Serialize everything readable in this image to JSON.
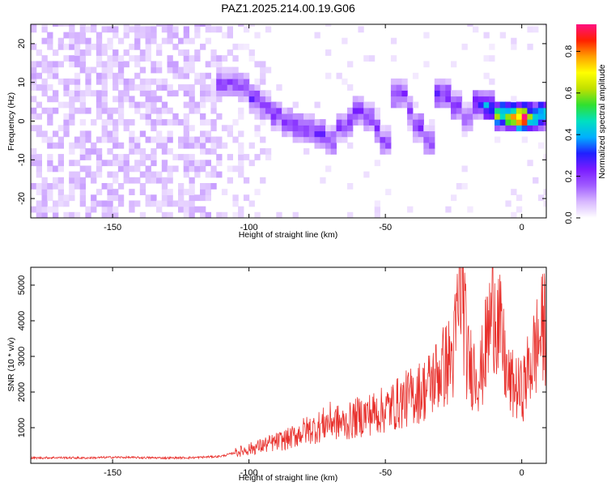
{
  "title": "PAZ1.2025.214.00.19.G06",
  "colors": {
    "snr_line": "#e8302c",
    "spectrogram_cmap": [
      "#ffffff",
      "#d8b8ff",
      "#a05cff",
      "#7a1cff",
      "#2020ff",
      "#00b0ff",
      "#00e0c0",
      "#30e030",
      "#c0e000",
      "#ffff00",
      "#ffa000",
      "#ff2000",
      "#ff1080"
    ]
  },
  "chart_data": [
    {
      "type": "heatmap",
      "title": "PAZ1.2025.214.00.19.G06",
      "xlabel": "Height of straight line (km)",
      "ylabel": "Frequency (Hz)",
      "xlim": [
        -180,
        9
      ],
      "ylim": [
        -25,
        25
      ],
      "xticks": [
        -150,
        -100,
        -50,
        0
      ],
      "yticks": [
        -20,
        -10,
        0,
        10,
        20
      ],
      "colorbar": {
        "label": "Normalized spectral amplitude",
        "range": [
          0.0,
          0.93
        ],
        "ticks": [
          "0.0",
          "0.2",
          "0.4",
          "0.6",
          "0.8"
        ]
      },
      "ridge": [
        {
          "x": -108,
          "y": 9,
          "amp": 0.2
        },
        {
          "x": -104,
          "y": 8,
          "amp": 0.2
        },
        {
          "x": -100,
          "y": 5,
          "amp": 0.22
        },
        {
          "x": -96,
          "y": 3,
          "amp": 0.2
        },
        {
          "x": -92,
          "y": 1,
          "amp": 0.22
        },
        {
          "x": -88,
          "y": -1,
          "amp": 0.2
        },
        {
          "x": -84,
          "y": -2,
          "amp": 0.22
        },
        {
          "x": -80,
          "y": -3,
          "amp": 0.2
        },
        {
          "x": -76,
          "y": -4,
          "amp": 0.22
        },
        {
          "x": -72,
          "y": -6,
          "amp": 0.2
        },
        {
          "x": -68,
          "y": -2,
          "amp": 0.2
        },
        {
          "x": -64,
          "y": -1,
          "amp": 0.22
        },
        {
          "x": -61,
          "y": 2,
          "amp": 0.25
        },
        {
          "x": -57,
          "y": 0,
          "amp": 0.2
        },
        {
          "x": -54,
          "y": -3,
          "amp": 0.22
        },
        {
          "x": -51,
          "y": -6,
          "amp": 0.2
        },
        {
          "x": -46,
          "y": 6,
          "amp": 0.22
        },
        {
          "x": -42,
          "y": 2,
          "amp": 0.2
        },
        {
          "x": -40,
          "y": -2,
          "amp": 0.22
        },
        {
          "x": -36,
          "y": -6,
          "amp": 0.2
        },
        {
          "x": -30,
          "y": 6,
          "amp": 0.25
        },
        {
          "x": -26,
          "y": 3,
          "amp": 0.22
        },
        {
          "x": -22,
          "y": 0,
          "amp": 0.2
        },
        {
          "x": -18,
          "y": 4,
          "amp": 0.3
        },
        {
          "x": -14,
          "y": 3,
          "amp": 0.45
        },
        {
          "x": -10,
          "y": 1,
          "amp": 0.6
        },
        {
          "x": -6,
          "y": 0.5,
          "amp": 0.7
        },
        {
          "x": -2,
          "y": 0,
          "amp": 0.93
        },
        {
          "x": 2,
          "y": 0.5,
          "amp": 0.55
        },
        {
          "x": 6,
          "y": 1,
          "amp": 0.5
        }
      ]
    },
    {
      "type": "line",
      "xlabel": "Height of straight line (km)",
      "ylabel": "SNR (10 * v/v)",
      "xlim": [
        -180,
        9
      ],
      "ylim": [
        0,
        5500
      ],
      "xticks": [
        -150,
        -100,
        -50,
        0
      ],
      "yticks": [
        1000,
        2000,
        3000,
        4000,
        5000
      ],
      "series": [
        {
          "x": [
            -180,
            -170,
            -160,
            -150,
            -140,
            -130,
            -120,
            -110,
            -105,
            -100,
            -95,
            -90,
            -85,
            -80,
            -75,
            -70,
            -65,
            -60,
            -55,
            -50,
            -45,
            -40,
            -35,
            -30,
            -25,
            -22,
            -20,
            -15,
            -10,
            -5,
            0,
            5,
            9
          ],
          "y": [
            150,
            160,
            150,
            170,
            160,
            150,
            160,
            200,
            300,
            400,
            500,
            600,
            700,
            900,
            1000,
            1200,
            1100,
            1300,
            1400,
            1500,
            1700,
            1900,
            2100,
            2600,
            3000,
            5400,
            2800,
            2500,
            4600,
            2300,
            2000,
            3200,
            4000
          ]
        }
      ]
    }
  ]
}
